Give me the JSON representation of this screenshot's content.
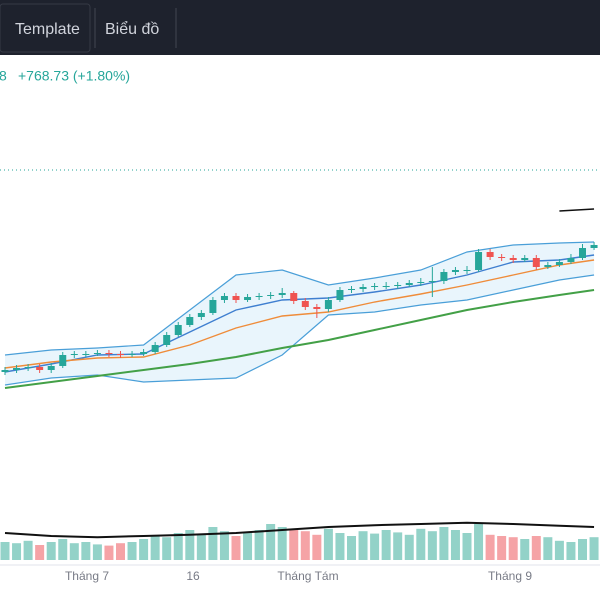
{
  "toolbar": {
    "items": [
      "Template",
      "Biểu đồ"
    ]
  },
  "header": {
    "price_tail": "8",
    "change": "+768.73 (+1.80%)"
  },
  "chart_data": {
    "type": "candlestick",
    "ylim": [
      0,
      600
    ],
    "up_color": "#26a69a",
    "down_color": "#ef5350",
    "candles": [
      [
        228,
        233,
        225,
        230
      ],
      [
        230,
        235,
        227,
        232
      ],
      [
        232,
        236,
        229,
        233
      ],
      [
        233,
        236,
        227,
        230
      ],
      [
        230,
        237,
        227,
        234
      ],
      [
        234,
        248,
        232,
        245
      ],
      [
        245,
        249,
        242,
        246
      ],
      [
        246,
        249,
        243,
        246
      ],
      [
        246,
        250,
        244,
        247
      ],
      [
        247,
        250,
        243,
        246
      ],
      [
        246,
        249,
        242,
        245
      ],
      [
        245,
        249,
        243,
        246
      ],
      [
        246,
        251,
        244,
        248
      ],
      [
        248,
        258,
        246,
        255
      ],
      [
        255,
        268,
        253,
        265
      ],
      [
        265,
        278,
        263,
        275
      ],
      [
        275,
        286,
        273,
        283
      ],
      [
        283,
        290,
        280,
        287
      ],
      [
        287,
        303,
        285,
        300
      ],
      [
        300,
        307,
        297,
        304
      ],
      [
        304,
        307,
        297,
        300
      ],
      [
        300,
        306,
        298,
        303
      ],
      [
        303,
        307,
        300,
        304
      ],
      [
        304,
        308,
        301,
        305
      ],
      [
        305,
        312,
        302,
        307
      ],
      [
        307,
        309,
        296,
        299
      ],
      [
        299,
        302,
        290,
        293
      ],
      [
        293,
        296,
        282,
        291
      ],
      [
        291,
        303,
        288,
        300
      ],
      [
        300,
        313,
        298,
        310
      ],
      [
        310,
        314,
        307,
        311
      ],
      [
        311,
        316,
        308,
        313
      ],
      [
        313,
        317,
        310,
        314
      ],
      [
        314,
        318,
        311,
        314
      ],
      [
        314,
        318,
        311,
        315
      ],
      [
        315,
        320,
        313,
        317
      ],
      [
        317,
        322,
        314,
        318
      ],
      [
        318,
        333,
        303,
        319
      ],
      [
        319,
        331,
        316,
        328
      ],
      [
        328,
        333,
        325,
        330
      ],
      [
        330,
        334,
        326,
        330
      ],
      [
        330,
        351,
        328,
        348
      ],
      [
        348,
        351,
        340,
        343
      ],
      [
        343,
        346,
        339,
        342
      ],
      [
        342,
        345,
        337,
        340
      ],
      [
        340,
        345,
        338,
        342
      ],
      [
        342,
        345,
        330,
        333
      ],
      [
        333,
        338,
        331,
        335
      ],
      [
        335,
        341,
        333,
        338
      ],
      [
        338,
        346,
        336,
        342
      ],
      [
        342,
        356,
        340,
        352
      ],
      [
        352,
        358,
        350,
        355
      ]
    ],
    "price_line": 430,
    "band": {
      "color": "#4a9fd8",
      "fill": "#e3f2fb",
      "x": [
        0,
        4,
        8,
        12,
        16,
        20,
        24,
        28,
        32,
        36,
        40,
        44,
        48,
        51
      ],
      "upper": [
        245,
        250,
        252,
        255,
        290,
        325,
        330,
        315,
        322,
        330,
        348,
        355,
        357,
        358
      ],
      "lower": [
        215,
        222,
        225,
        218,
        220,
        222,
        245,
        285,
        288,
        295,
        300,
        310,
        320,
        325
      ]
    },
    "lines": [
      {
        "color": "#3f7fd0",
        "x": [
          0,
          4,
          8,
          12,
          16,
          20,
          24,
          28,
          32,
          36,
          40,
          44,
          48,
          51
        ],
        "values": [
          228,
          236,
          245,
          246,
          268,
          290,
          300,
          302,
          308,
          315,
          325,
          338,
          340,
          345
        ]
      },
      {
        "color": "#ef8c3a",
        "x": [
          0,
          4,
          8,
          12,
          16,
          20,
          24,
          28,
          32,
          36,
          40,
          44,
          48,
          51
        ],
        "values": [
          232,
          238,
          242,
          243,
          255,
          272,
          284,
          288,
          298,
          306,
          315,
          325,
          335,
          340
        ]
      },
      {
        "color": "#43a047",
        "x": [
          0,
          4,
          8,
          12,
          16,
          20,
          24,
          28,
          32,
          36,
          40,
          44,
          48,
          51
        ],
        "values": [
          212,
          218,
          224,
          230,
          236,
          243,
          252,
          260,
          270,
          280,
          290,
          298,
          305,
          310
        ]
      },
      {
        "color": "#111111",
        "x": [
          48,
          51
        ],
        "values": [
          389,
          391
        ]
      }
    ],
    "volume": {
      "vlim": [
        0,
        100
      ],
      "up_color": "#93d2c8",
      "down_color": "#f5a3a6",
      "values": [
        30,
        28,
        32,
        25,
        30,
        35,
        28,
        30,
        26,
        24,
        28,
        30,
        35,
        40,
        38,
        45,
        50,
        42,
        55,
        48,
        40,
        45,
        50,
        60,
        55,
        50,
        48,
        42,
        52,
        45,
        40,
        48,
        44,
        50,
        46,
        42,
        52,
        48,
        55,
        50,
        45,
        60,
        42,
        40,
        38,
        35,
        40,
        38,
        32,
        30,
        35,
        38
      ],
      "ma_color": "#111111",
      "ma_x": [
        0,
        4,
        8,
        12,
        16,
        20,
        24,
        28,
        32,
        36,
        40,
        44,
        48,
        51
      ],
      "ma": [
        45,
        40,
        38,
        40,
        42,
        45,
        50,
        55,
        58,
        60,
        62,
        60,
        57,
        55
      ]
    },
    "x_labels": [
      "Tháng 7",
      "16",
      "Tháng Tám",
      "Tháng 9"
    ]
  }
}
